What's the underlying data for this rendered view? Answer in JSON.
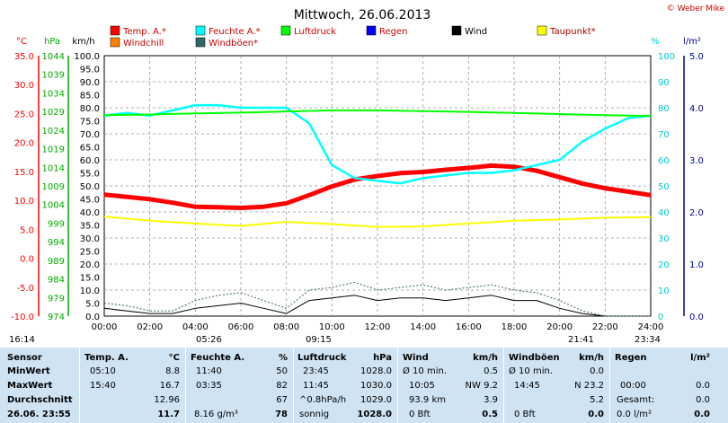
{
  "chart_data": {
    "type": "line",
    "title": "Mittwoch, 26.06.2013",
    "credit": "© Weber Mike",
    "x": {
      "ticks": [
        "00:00",
        "02:00",
        "04:00",
        "06:00",
        "08:00",
        "10:00",
        "12:00",
        "14:00",
        "16:00",
        "18:00",
        "20:00",
        "22:00",
        "24:00"
      ],
      "range_hours": [
        0,
        24
      ]
    },
    "axes": {
      "temp": {
        "unit": "°C",
        "ticks": [
          "35.0",
          "30.0",
          "25.0",
          "20.0",
          "15.0",
          "10.0",
          "5.0",
          "0.0",
          "-5.0",
          "-10.0"
        ],
        "range": [
          -10,
          35
        ],
        "color": "#ff0000"
      },
      "pressure": {
        "unit": "hPa",
        "ticks": [
          "1044",
          "1039",
          "1034",
          "1029",
          "1024",
          "1019",
          "1014",
          "1009",
          "1004",
          "999",
          "994",
          "989",
          "984",
          "979",
          "974"
        ],
        "range": [
          974,
          1044
        ],
        "color": "#00cc00"
      },
      "wind": {
        "unit": "km/h",
        "ticks": [
          "100.0",
          "95.0",
          "90.0",
          "85.0",
          "80.0",
          "75.0",
          "70.0",
          "65.0",
          "60.0",
          "55.0",
          "50.0",
          "45.0",
          "40.0",
          "35.0",
          "30.0",
          "25.0",
          "20.0",
          "15.0",
          "10.0",
          "5.0",
          "0.0"
        ],
        "range": [
          0,
          100
        ],
        "color": "#000000"
      },
      "humidity": {
        "unit": "%",
        "ticks": [
          "100",
          "90",
          "80",
          "70",
          "60",
          "50",
          "40",
          "30",
          "20",
          "10",
          "0"
        ],
        "range": [
          0,
          100
        ],
        "color": "#00cccc"
      },
      "rain": {
        "unit": "l/m²",
        "ticks": [
          "5.0",
          "4.0",
          "3.0",
          "2.0",
          "1.0",
          "0.0"
        ],
        "range": [
          0,
          5
        ],
        "color": "#000099"
      }
    },
    "legend": [
      {
        "name": "Temp. A.*",
        "color": "#ff0000"
      },
      {
        "name": "Feuchte A.*",
        "color": "#00ffff"
      },
      {
        "name": "Luftdruck",
        "color": "#00ff00"
      },
      {
        "name": "Regen",
        "color": "#0000ff"
      },
      {
        "name": "Wind",
        "color": "#000000"
      },
      {
        "name": "Taupunkt*",
        "color": "#ffff00"
      },
      {
        "name": "Windchill",
        "color": "#ff8000"
      },
      {
        "name": "Windböen*",
        "color": "#336666"
      }
    ],
    "series": [
      {
        "name": "Temp. A.*",
        "axis": "temp",
        "color": "#ff0000",
        "x": [
          0,
          1,
          2,
          3,
          4,
          5,
          6,
          7,
          8,
          9,
          10,
          11,
          12,
          13,
          14,
          15,
          16,
          17,
          18,
          19,
          20,
          21,
          22,
          23,
          24
        ],
        "y": [
          11.0,
          10.6,
          10.2,
          9.6,
          8.9,
          8.8,
          8.7,
          8.9,
          9.5,
          10.9,
          12.4,
          13.6,
          14.2,
          14.7,
          14.9,
          15.3,
          15.6,
          16.0,
          15.8,
          15.1,
          14.0,
          12.9,
          12.1,
          11.5,
          10.9
        ]
      },
      {
        "name": "Feuchte A.*",
        "axis": "humidity",
        "color": "#00ffff",
        "x": [
          0,
          1,
          2,
          3,
          4,
          5,
          6,
          7,
          8,
          9,
          10,
          11,
          12,
          13,
          14,
          15,
          16,
          17,
          18,
          19,
          20,
          21,
          22,
          23,
          24
        ],
        "y": [
          77,
          78,
          77,
          79,
          81,
          81,
          80,
          80,
          80,
          74,
          58,
          53,
          52,
          51,
          53,
          54,
          55,
          55,
          56,
          58,
          60,
          67,
          72,
          76,
          77
        ]
      },
      {
        "name": "Luftdruck",
        "axis": "pressure",
        "color": "#00ff00",
        "x": [
          0,
          2,
          4,
          6,
          8,
          10,
          12,
          14,
          16,
          18,
          20,
          22,
          24
        ],
        "y": [
          1028.0,
          1028.2,
          1028.5,
          1028.7,
          1029.0,
          1029.3,
          1029.3,
          1029.1,
          1028.9,
          1028.6,
          1028.3,
          1028.0,
          1027.8
        ]
      },
      {
        "name": "Taupunkt*",
        "axis": "temp",
        "color": "#ffff00",
        "x": [
          0,
          2,
          4,
          6,
          8,
          10,
          12,
          14,
          16,
          18,
          20,
          22,
          24
        ],
        "y": [
          7.2,
          6.5,
          6.0,
          5.6,
          6.3,
          5.9,
          5.4,
          5.5,
          6.0,
          6.5,
          6.7,
          7.0,
          7.1
        ]
      },
      {
        "name": "Wind",
        "axis": "wind",
        "color": "#000000",
        "x": [
          0,
          1,
          2,
          3,
          4,
          5,
          6,
          7,
          8,
          9,
          10,
          11,
          12,
          13,
          14,
          15,
          16,
          17,
          18,
          19,
          20,
          21,
          22,
          23,
          24
        ],
        "y": [
          3,
          2,
          1,
          1,
          3,
          4,
          5,
          3,
          1,
          6,
          7,
          8,
          6,
          7,
          7,
          6,
          7,
          8,
          6,
          6,
          3,
          1,
          0,
          0,
          0
        ]
      },
      {
        "name": "Windböen*",
        "axis": "wind",
        "color": "#336666",
        "x": [
          0,
          1,
          2,
          3,
          4,
          5,
          6,
          7,
          8,
          9,
          10,
          11,
          12,
          13,
          14,
          15,
          16,
          17,
          18,
          19,
          20,
          21,
          22,
          23,
          24
        ],
        "y": [
          5,
          4,
          2,
          2,
          6,
          8,
          9,
          6,
          3,
          10,
          11,
          13,
          10,
          11,
          12,
          10,
          11,
          12,
          10,
          9,
          6,
          2,
          0,
          0,
          0
        ]
      }
    ],
    "markers_below": [
      {
        "label": "16:14"
      },
      {
        "label": "05:26"
      },
      {
        "label": "09:15"
      },
      {
        "label": "21:41"
      },
      {
        "label": "23:34"
      }
    ]
  },
  "table": {
    "headers": {
      "sensor": "Sensor",
      "temp": "Temp. A.",
      "temp_unit": "°C",
      "hum": "Feuchte A.",
      "hum_unit": "%",
      "pres": "Luftdruck",
      "pres_unit": "hPa",
      "wind": "Wind",
      "wind_unit": "km/h",
      "gust": "Windböen",
      "gust_unit": "km/h",
      "rain": "Regen",
      "rain_unit": "l/m²"
    },
    "rows": {
      "min": {
        "label": "MinWert",
        "temp_time": "05:10",
        "temp_val": "8.8",
        "hum_time": "11:40",
        "hum_val": "50",
        "pres_time": "23:45",
        "pres_val": "1028.0",
        "wind_time": "Ø 10 min.",
        "wind_val": "0.5",
        "gust_time": "Ø 10 min.",
        "gust_val": "0.0",
        "rain_time": "",
        "rain_val": ""
      },
      "max": {
        "label": "MaxWert",
        "temp_time": "15:40",
        "temp_val": "16.7",
        "hum_time": "03:35",
        "hum_val": "82",
        "pres_time": "11:45",
        "pres_val": "1030.0",
        "wind_time": "10:05",
        "wind_val": "NW 9.2",
        "gust_time": "14:45",
        "gust_val": "N 23.2",
        "rain_time": "00:00",
        "rain_val": "0.0"
      },
      "avg": {
        "label": "Durchschnitt",
        "temp_time": "",
        "temp_val": "12.96",
        "hum_time": "",
        "hum_val": "67",
        "pres_time": "^0.8hPa/h",
        "pres_val": "1029.0",
        "wind_time": "93.9 km",
        "wind_val": "3.9",
        "gust_time": "",
        "gust_val": "5.2",
        "rain_time": "Gesamt:",
        "rain_val": "0.0"
      },
      "now": {
        "label": "26.06. 23:55",
        "temp_time": "",
        "temp_val": "11.7",
        "hum_time": "8.16 g/m³",
        "hum_val": "78",
        "pres_time": "sonnig",
        "pres_val": "1028.0",
        "wind_time": "0 Bft",
        "wind_val": "0.5",
        "gust_time": "0 Bft",
        "gust_val": "0.0",
        "rain_time": "0.0 l/m²",
        "rain_val": "0.0"
      }
    }
  }
}
